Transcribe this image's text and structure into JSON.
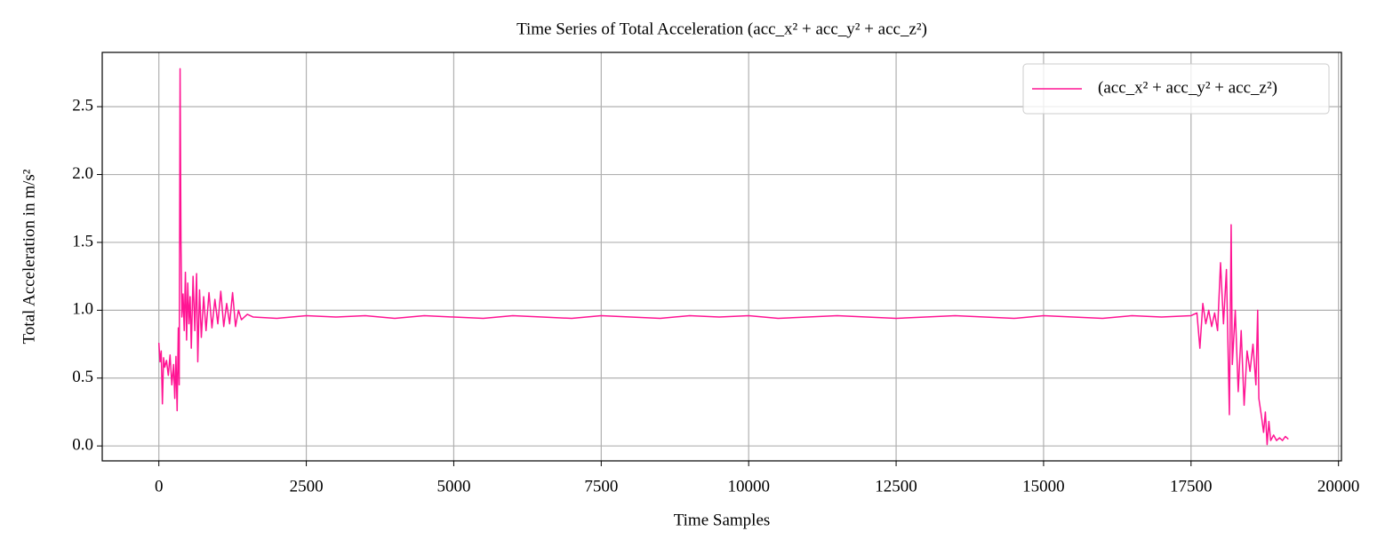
{
  "chart_data": {
    "type": "line",
    "title": "Time Series of Total Acceleration (acc_x² + acc_y² + acc_z²)",
    "x_label": "Time Samples",
    "y_label": "Total Acceleration in m/s²",
    "x": [
      0,
      20,
      40,
      60,
      80,
      100,
      130,
      160,
      190,
      220,
      250,
      270,
      290,
      310,
      330,
      345,
      360,
      375,
      390,
      410,
      430,
      450,
      470,
      490,
      510,
      530,
      550,
      580,
      610,
      640,
      660,
      690,
      720,
      760,
      800,
      850,
      900,
      950,
      1000,
      1050,
      1100,
      1150,
      1200,
      1250,
      1300,
      1350,
      1400,
      1500,
      1600,
      2000,
      2500,
      3000,
      3500,
      4000,
      4500,
      5000,
      5500,
      6000,
      6500,
      7000,
      7500,
      8000,
      8500,
      9000,
      9500,
      10000,
      10500,
      11000,
      11500,
      12000,
      12500,
      13000,
      13500,
      14000,
      14500,
      15000,
      15500,
      16000,
      16500,
      17000,
      17500,
      17600,
      17650,
      17700,
      17750,
      17800,
      17850,
      17900,
      17950,
      18000,
      18050,
      18100,
      18150,
      18180,
      18200,
      18250,
      18300,
      18350,
      18400,
      18450,
      18500,
      18550,
      18600,
      18630,
      18650,
      18700,
      18730,
      18760,
      18790,
      18820,
      18850,
      18900,
      18950,
      19000,
      19050,
      19100,
      19150
    ],
    "series": [
      {
        "name": "(acc_x² + acc_y² + acc_z²)",
        "color": "#ff1493",
        "values": [
          0.76,
          0.62,
          0.7,
          0.31,
          0.65,
          0.58,
          0.63,
          0.52,
          0.67,
          0.45,
          0.6,
          0.35,
          0.66,
          0.26,
          0.87,
          0.45,
          2.78,
          1.5,
          0.95,
          1.12,
          0.85,
          1.28,
          0.78,
          1.2,
          0.9,
          1.1,
          0.72,
          1.25,
          0.85,
          1.27,
          0.62,
          1.15,
          0.8,
          1.1,
          0.85,
          1.13,
          0.87,
          1.08,
          0.9,
          1.14,
          0.88,
          1.05,
          0.9,
          1.13,
          0.88,
          1.0,
          0.93,
          0.97,
          0.95,
          0.94,
          0.96,
          0.95,
          0.96,
          0.94,
          0.96,
          0.95,
          0.94,
          0.96,
          0.95,
          0.94,
          0.96,
          0.95,
          0.94,
          0.96,
          0.95,
          0.96,
          0.94,
          0.95,
          0.96,
          0.95,
          0.94,
          0.95,
          0.96,
          0.95,
          0.94,
          0.96,
          0.95,
          0.94,
          0.96,
          0.95,
          0.96,
          0.98,
          0.72,
          1.05,
          0.9,
          1.0,
          0.88,
          0.98,
          0.85,
          1.35,
          0.9,
          1.3,
          0.23,
          1.63,
          0.6,
          1.0,
          0.4,
          0.85,
          0.3,
          0.7,
          0.55,
          0.75,
          0.45,
          1.0,
          0.35,
          0.2,
          0.1,
          0.25,
          0.01,
          0.18,
          0.04,
          0.08,
          0.04,
          0.06,
          0.04,
          0.07,
          0.05
        ]
      }
    ],
    "xlim": [
      -960,
      20050
    ],
    "ylim": [
      -0.11,
      2.9
    ],
    "xticks": [
      0,
      2500,
      5000,
      7500,
      10000,
      12500,
      15000,
      17500,
      20000
    ],
    "yticks": [
      0.0,
      0.5,
      1.0,
      1.5,
      2.0,
      2.5
    ],
    "grid": true,
    "legend": "upper right"
  }
}
